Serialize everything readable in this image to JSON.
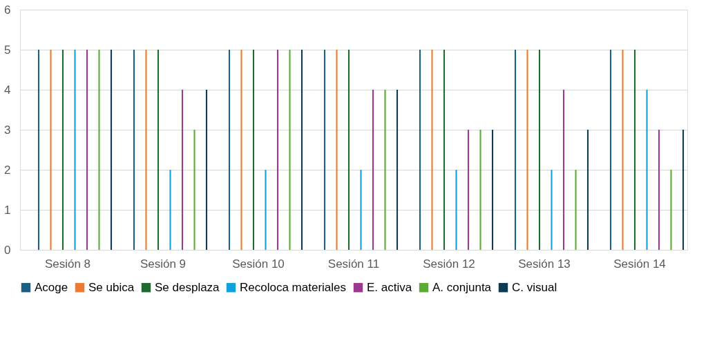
{
  "chart_data": {
    "type": "bar",
    "categories": [
      "Sesión 8",
      "Sesión 9",
      "Sesión 10",
      "Sesión 11",
      "Sesión 12",
      "Sesión 13",
      "Sesión 14"
    ],
    "series": [
      {
        "name": "Acoge",
        "color": "#1b5f85",
        "values": [
          5,
          5,
          5,
          5,
          5,
          5,
          5
        ]
      },
      {
        "name": "Se ubica",
        "color": "#ee7a30",
        "values": [
          5,
          5,
          5,
          5,
          5,
          5,
          5
        ]
      },
      {
        "name": "Se desplaza",
        "color": "#1e6b30",
        "values": [
          5,
          5,
          5,
          5,
          5,
          5,
          5
        ]
      },
      {
        "name": "Recoloca materiales",
        "color": "#12a0d8",
        "values": [
          5,
          2,
          2,
          2,
          2,
          2,
          4
        ]
      },
      {
        "name": "E. activa",
        "color": "#9a3a8e",
        "values": [
          5,
          4,
          5,
          4,
          3,
          4,
          3
        ]
      },
      {
        "name": "A. conjunta",
        "color": "#5aad34",
        "values": [
          5,
          3,
          5,
          4,
          3,
          2,
          2
        ]
      },
      {
        "name": "C. visual",
        "color": "#0e3a52",
        "values": [
          5,
          4,
          5,
          4,
          3,
          3,
          3
        ]
      }
    ],
    "ylim": [
      0,
      6
    ],
    "yticks": [
      0,
      1,
      2,
      3,
      4,
      5,
      6
    ],
    "grid": "y",
    "legend": "bottom"
  }
}
